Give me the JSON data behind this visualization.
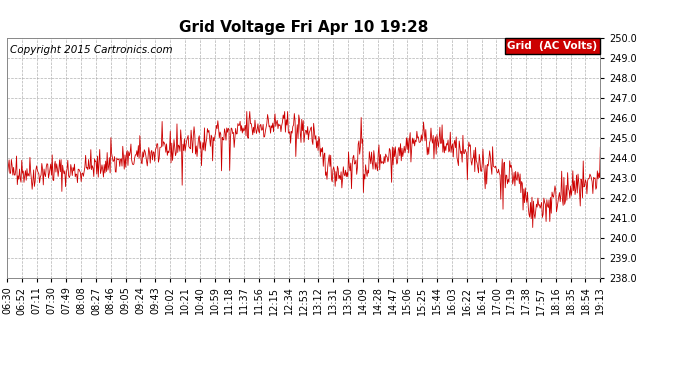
{
  "title": "Grid Voltage Fri Apr 10 19:28",
  "copyright": "Copyright 2015 Cartronics.com",
  "legend_label": "Grid  (AC Volts)",
  "legend_bg": "#cc0000",
  "legend_text_color": "#ffffff",
  "line_color": "#cc0000",
  "background_color": "#ffffff",
  "grid_color": "#aaaaaa",
  "ylim": [
    238.0,
    250.0
  ],
  "yticks": [
    238.0,
    239.0,
    240.0,
    241.0,
    242.0,
    243.0,
    244.0,
    245.0,
    246.0,
    247.0,
    248.0,
    249.0,
    250.0
  ],
  "xtick_labels": [
    "06:30",
    "06:52",
    "07:11",
    "07:30",
    "07:49",
    "08:08",
    "08:27",
    "08:46",
    "09:05",
    "09:24",
    "09:43",
    "10:02",
    "10:21",
    "10:40",
    "10:59",
    "11:18",
    "11:37",
    "11:56",
    "12:15",
    "12:34",
    "12:53",
    "13:12",
    "13:31",
    "13:50",
    "14:09",
    "14:28",
    "14:47",
    "15:06",
    "15:25",
    "15:44",
    "16:03",
    "16:22",
    "16:41",
    "17:00",
    "17:19",
    "17:38",
    "17:57",
    "18:16",
    "18:35",
    "18:54",
    "19:13"
  ],
  "title_fontsize": 11,
  "tick_fontsize": 7,
  "copyright_fontsize": 7.5
}
